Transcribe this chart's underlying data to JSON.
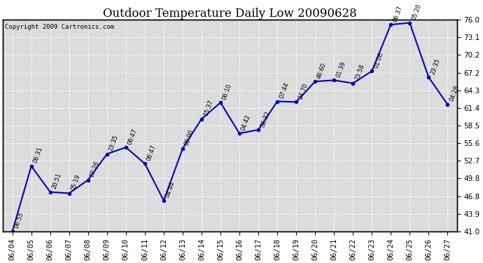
{
  "title": "Outdoor Temperature Daily Low 20090628",
  "copyright": "Copyright 2009 Cartronics.com",
  "dates": [
    "06/04",
    "06/05",
    "06/06",
    "06/07",
    "06/08",
    "06/09",
    "06/10",
    "06/11",
    "06/12",
    "06/13",
    "06/14",
    "06/15",
    "06/16",
    "06/17",
    "06/18",
    "06/19",
    "06/20",
    "06/21",
    "06/22",
    "06/23",
    "06/24",
    "06/25",
    "06/26",
    "06/27"
  ],
  "temperatures": [
    41.0,
    51.8,
    47.5,
    47.3,
    49.5,
    53.8,
    54.9,
    52.2,
    46.1,
    54.7,
    59.6,
    62.3,
    57.2,
    57.8,
    62.5,
    62.4,
    65.8,
    66.0,
    65.5,
    67.5,
    75.2,
    75.5,
    66.5,
    62.0
  ],
  "times": [
    "06:55",
    "06:31",
    "20:51",
    "05:19",
    "07:26",
    "23:35",
    "06:47",
    "06:47",
    "04:44",
    "00:00",
    "15:37",
    "06:10",
    "04:42",
    "06:32",
    "07:44",
    "24:70",
    "46:60",
    "01:39",
    "23:58",
    "01:06",
    "06:37",
    "05:20",
    "23:35",
    "04:28"
  ],
  "ylim": [
    41.0,
    76.0
  ],
  "yticks": [
    41.0,
    43.9,
    46.8,
    49.8,
    52.7,
    55.6,
    58.5,
    61.4,
    64.3,
    67.2,
    70.2,
    73.1,
    76.0
  ],
  "line_color": "#0000bb",
  "marker_color": "#0000bb",
  "plot_bg_color": "#dcdcdc",
  "fig_bg_color": "#ffffff",
  "grid_color": "#ffffff",
  "title_fontsize": 12,
  "tick_fontsize": 7.5,
  "label_fontsize": 6.0,
  "copyright_fontsize": 6.5
}
